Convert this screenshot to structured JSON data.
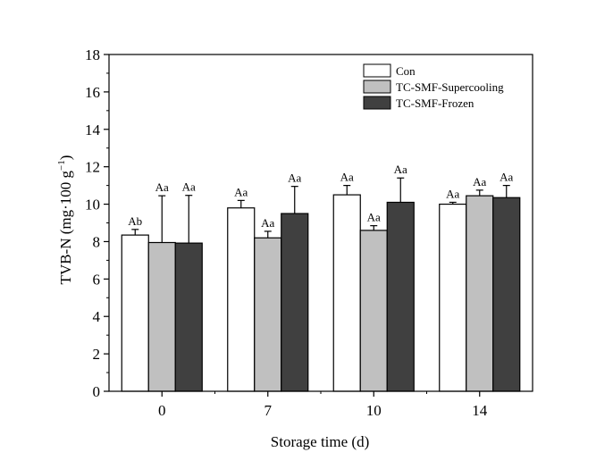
{
  "chart_data": {
    "type": "bar",
    "title": "",
    "xlabel": "Storage time (d)",
    "ylabel_main": "TVB-N (mg·100 g",
    "ylabel_sup": "−1",
    "ylabel_close": ")",
    "ylim": [
      0,
      18
    ],
    "yticks": [
      0,
      2,
      4,
      6,
      8,
      10,
      12,
      14,
      16,
      18
    ],
    "categories": [
      "0",
      "7",
      "10",
      "14"
    ],
    "legend_position": "top-right",
    "series": [
      {
        "name": "Con",
        "color": "#ffffff",
        "values": [
          8.35,
          9.8,
          10.5,
          10.0
        ],
        "errors": [
          0.3,
          0.4,
          0.5,
          0.1
        ],
        "labels": [
          "Ab",
          "Aa",
          "Aa",
          "Aa"
        ]
      },
      {
        "name": "TC-SMF-Supercooling",
        "color": "#c0c0c0",
        "values": [
          7.95,
          8.2,
          8.6,
          10.45
        ],
        "errors": [
          2.5,
          0.35,
          0.25,
          0.3
        ],
        "labels": [
          "Aa",
          "Aa",
          "Aa",
          "Aa"
        ]
      },
      {
        "name": "TC-SMF-Frozen",
        "color": "#404040",
        "values": [
          7.92,
          9.5,
          10.1,
          10.35
        ],
        "errors": [
          2.55,
          1.45,
          1.3,
          0.65
        ],
        "labels": [
          "Aa",
          "Aa",
          "Aa",
          "Aa"
        ]
      }
    ]
  }
}
